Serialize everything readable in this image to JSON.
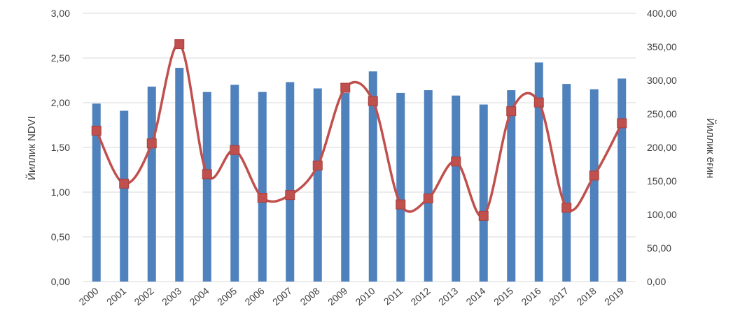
{
  "chart_data": {
    "type": "bar+line",
    "title": "",
    "categories": [
      "2000",
      "2001",
      "2002",
      "2003",
      "2004",
      "2005",
      "2006",
      "2007",
      "2008",
      "2009",
      "2010",
      "2011",
      "2012",
      "2013",
      "2014",
      "2015",
      "2016",
      "2017",
      "2018",
      "2019"
    ],
    "series": [
      {
        "name": "",
        "type": "bar",
        "axis": "left",
        "color": "#4f81bd",
        "values": [
          1.99,
          1.91,
          2.18,
          2.39,
          2.12,
          2.2,
          2.12,
          2.23,
          2.16,
          2.11,
          2.35,
          2.11,
          2.14,
          2.08,
          1.98,
          2.14,
          2.45,
          2.21,
          2.15,
          2.27
        ]
      },
      {
        "name": "",
        "type": "line",
        "axis": "right",
        "color": "#c0504d",
        "marker": "square",
        "smooth": true,
        "values": [
          225,
          146,
          206,
          354,
          160,
          196,
          125,
          129,
          173,
          289,
          269,
          115,
          124,
          179,
          98,
          254,
          267,
          110,
          158,
          236
        ]
      }
    ],
    "ylabel": "Йиллик NDVI",
    "ylabel_right": "Йиллик ёғин",
    "ylim": [
      0,
      3
    ],
    "ylim_right": [
      0,
      400
    ],
    "y_ticks": [
      "0,00",
      "0,50",
      "1,00",
      "1,50",
      "2,00",
      "2,50",
      "3,00"
    ],
    "y_ticks_right": [
      "0,00",
      "50,00",
      "100,00",
      "150,00",
      "200,00",
      "250,00",
      "300,00",
      "350,00",
      "400,00"
    ],
    "grid": true,
    "legend": "none"
  }
}
